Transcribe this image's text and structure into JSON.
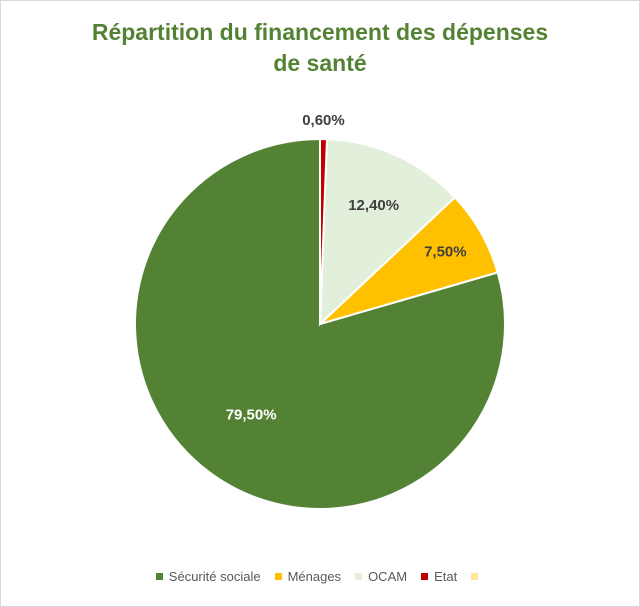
{
  "chart_data": {
    "type": "pie",
    "title_lines": [
      "Répartition du financement des dépenses",
      "de santé"
    ],
    "start_angle_deg": 0,
    "direction": "counterclockwise",
    "slices": [
      {
        "key": "securite",
        "label": "Sécurité sociale",
        "value": 79.5,
        "display": "79,50%",
        "color": "#548235",
        "label_color": "#ffffff"
      },
      {
        "key": "menages",
        "label": "Ménages",
        "value": 7.5,
        "display": "7,50%",
        "color": "#ffc000",
        "label_color": "#404040"
      },
      {
        "key": "ocam",
        "label": "OCAM",
        "value": 12.4,
        "display": "12,40%",
        "color": "#e2efda",
        "label_color": "#404040"
      },
      {
        "key": "etat",
        "label": "Etat",
        "value": 0.6,
        "display": "0,60%",
        "color": "#c00000",
        "label_color": "#404040"
      }
    ],
    "legend": {
      "placement": "bottom",
      "entries": [
        {
          "label": "Sécurité sociale",
          "color": "#548235"
        },
        {
          "label": "Ménages",
          "color": "#ffc000"
        },
        {
          "label": "OCAM",
          "color": "#e2efda"
        },
        {
          "label": "Etat",
          "color": "#c00000"
        },
        {
          "label": "",
          "color": "#ffe699"
        }
      ]
    }
  }
}
